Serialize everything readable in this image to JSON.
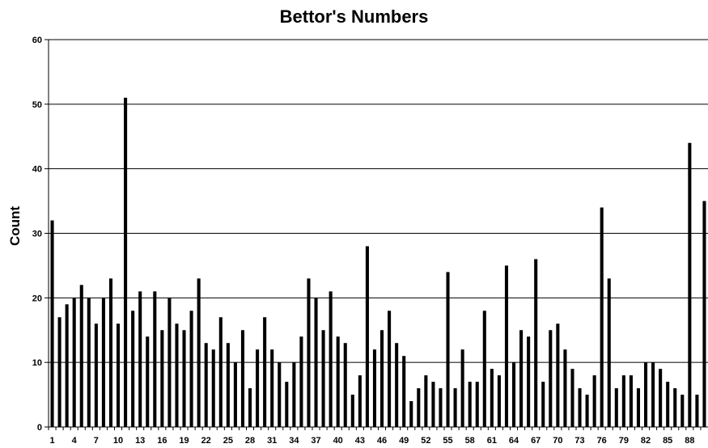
{
  "chart_data": {
    "type": "bar",
    "title": "Bettor's Numbers",
    "xlabel": "",
    "ylabel": "Count",
    "ylim": [
      0,
      60
    ],
    "yticks": [
      0,
      10,
      20,
      30,
      40,
      50,
      60
    ],
    "grid": true,
    "legend": "none",
    "bar_color": "#000000",
    "categories": [
      1,
      2,
      3,
      4,
      5,
      6,
      7,
      8,
      9,
      10,
      11,
      12,
      13,
      14,
      15,
      16,
      17,
      18,
      19,
      20,
      21,
      22,
      23,
      24,
      25,
      26,
      27,
      28,
      29,
      30,
      31,
      32,
      33,
      34,
      35,
      36,
      37,
      38,
      39,
      40,
      41,
      42,
      43,
      44,
      45,
      46,
      47,
      48,
      49,
      50,
      51,
      52,
      53,
      54,
      55,
      56,
      57,
      58,
      59,
      60,
      61,
      62,
      63,
      64,
      65,
      66,
      67,
      68,
      69,
      70,
      71,
      72,
      73,
      74,
      75,
      76,
      77,
      78,
      79,
      80,
      81,
      82,
      83,
      84,
      85,
      86,
      87,
      88,
      89,
      90
    ],
    "x_tick_labels": [
      1,
      4,
      7,
      10,
      13,
      16,
      19,
      22,
      25,
      28,
      31,
      34,
      37,
      40,
      43,
      46,
      49,
      52,
      55,
      58,
      61,
      64,
      67,
      70,
      73,
      76,
      79,
      82,
      85,
      88
    ],
    "values": [
      32,
      17,
      19,
      20,
      22,
      20,
      16,
      20,
      23,
      16,
      51,
      18,
      21,
      14,
      21,
      15,
      20,
      16,
      15,
      18,
      23,
      13,
      12,
      17,
      13,
      10,
      15,
      6,
      12,
      17,
      12,
      10,
      7,
      10,
      14,
      23,
      20,
      15,
      21,
      14,
      13,
      5,
      8,
      28,
      12,
      15,
      18,
      13,
      11,
      4,
      6,
      8,
      7,
      6,
      24,
      6,
      12,
      7,
      7,
      18,
      9,
      8,
      25,
      10,
      15,
      14,
      26,
      7,
      15,
      16,
      12,
      9,
      6,
      5,
      8,
      34,
      23,
      6,
      8,
      8,
      6,
      10,
      10,
      9,
      7,
      6,
      5,
      44,
      5,
      35
    ]
  }
}
